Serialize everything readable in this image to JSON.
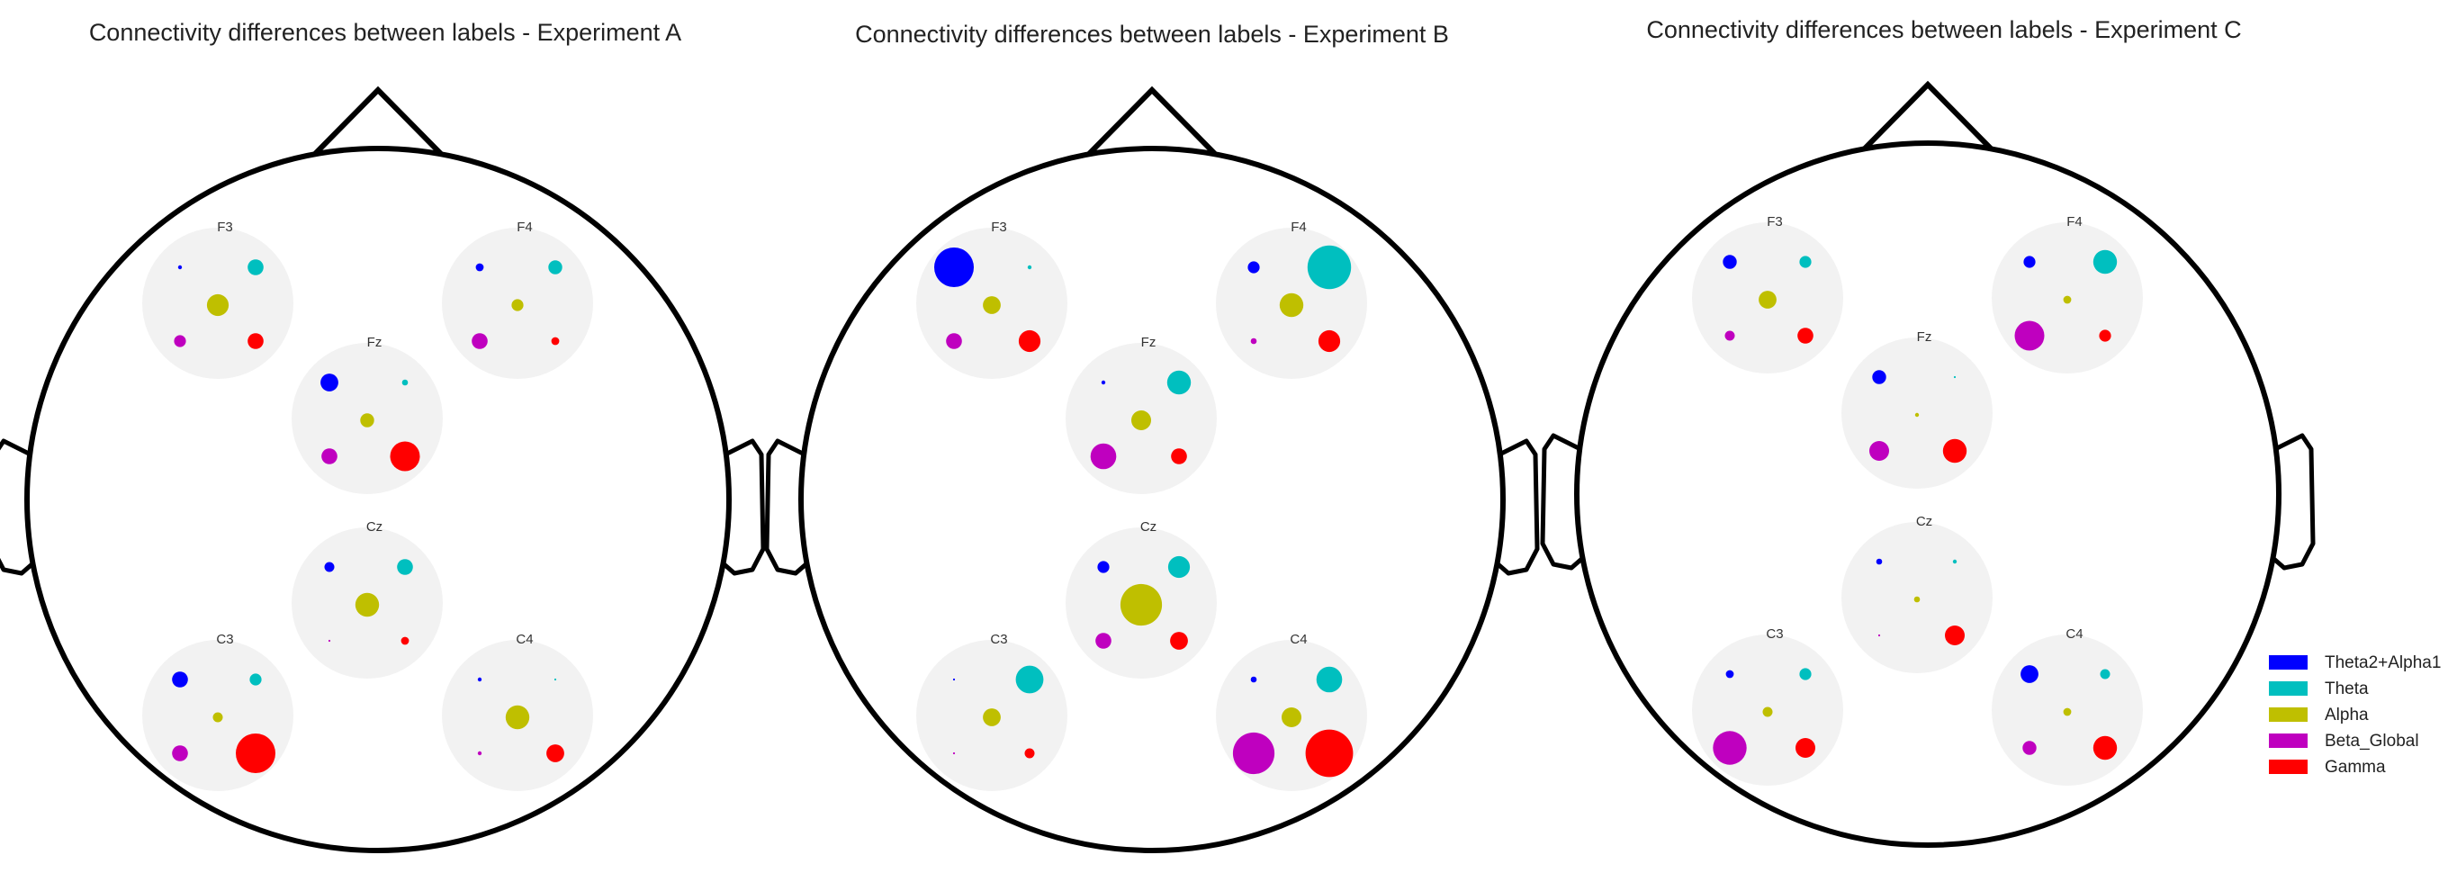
{
  "chart_data": {
    "type": "scatter",
    "plot_kind": "topographic head map with per-electrode band bubbles",
    "bands": [
      {
        "name": "Theta2+Alpha1",
        "color": "#0000ff"
      },
      {
        "name": "Theta",
        "color": "#00bfbf"
      },
      {
        "name": "Alpha",
        "color": "#bfbf00"
      },
      {
        "name": "Beta_Global",
        "color": "#bf00bf"
      },
      {
        "name": "Gamma",
        "color": "#ff0000"
      }
    ],
    "legend_placement": "right",
    "electrodes": [
      "F3",
      "F4",
      "Fz",
      "Cz",
      "C3",
      "C4"
    ],
    "panels": [
      {
        "title": "Connectivity differences between labels - Experiment A",
        "values": {
          "F3": [
            0.1,
            0.4,
            0.55,
            0.3,
            0.4
          ],
          "F4": [
            0.2,
            0.35,
            0.3,
            0.4,
            0.2
          ],
          "Fz": [
            0.45,
            0.15,
            0.35,
            0.4,
            0.75
          ],
          "Cz": [
            0.25,
            0.4,
            0.6,
            0.05,
            0.2
          ],
          "C3": [
            0.4,
            0.3,
            0.25,
            0.4,
            1.0
          ],
          "C4": [
            0.1,
            0.05,
            0.6,
            0.1,
            0.45
          ]
        }
      },
      {
        "title": "Connectivity differences between labels - Experiment B",
        "values": {
          "F3": [
            1.0,
            0.1,
            0.45,
            0.4,
            0.55
          ],
          "F4": [
            0.3,
            1.1,
            0.6,
            0.15,
            0.55
          ],
          "Fz": [
            0.1,
            0.6,
            0.5,
            0.65,
            0.4
          ],
          "Cz": [
            0.3,
            0.55,
            1.05,
            0.4,
            0.45
          ],
          "C3": [
            0.05,
            0.7,
            0.45,
            0.05,
            0.25
          ],
          "C4": [
            0.15,
            0.65,
            0.5,
            1.05,
            1.2
          ]
        }
      },
      {
        "title": "Connectivity differences between labels - Experiment C",
        "values": {
          "F3": [
            0.35,
            0.3,
            0.45,
            0.25,
            0.4
          ],
          "F4": [
            0.3,
            0.6,
            0.2,
            0.75,
            0.3
          ],
          "Fz": [
            0.35,
            0.05,
            0.1,
            0.5,
            0.6
          ],
          "Cz": [
            0.15,
            0.1,
            0.15,
            0.05,
            0.5
          ],
          "C3": [
            0.2,
            0.3,
            0.25,
            0.85,
            0.5
          ],
          "C4": [
            0.45,
            0.25,
            0.2,
            0.35,
            0.6
          ]
        }
      }
    ]
  }
}
